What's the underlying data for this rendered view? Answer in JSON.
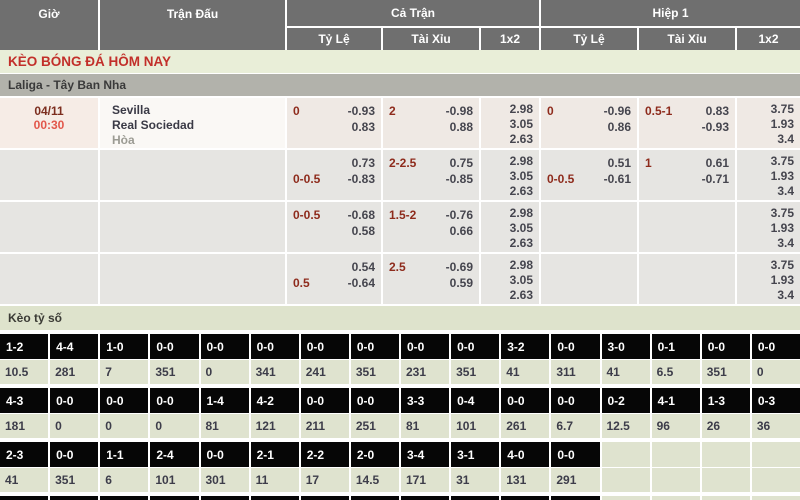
{
  "header": {
    "col_time": "Giờ",
    "col_match": "Trận Đấu",
    "col_full": "Cả Trận",
    "col_half": "Hiệp 1",
    "sub_handicap": "Tỷ Lệ",
    "sub_overunder": "Tài Xỉu",
    "sub_1x2": "1x2"
  },
  "section_title": "KÈO BÓNG ĐÁ HÔM NAY",
  "league": "Laliga - Tây Ban Nha",
  "match": {
    "date": "04/11",
    "time": "00:30",
    "home": "Sevilla",
    "away": "Real Sociedad",
    "draw_label": "Hòa"
  },
  "odds_rows": [
    {
      "ft_hdp": [
        [
          "0",
          "-0.93"
        ],
        [
          "",
          "0.83"
        ]
      ],
      "ft_ou": [
        [
          "2",
          "-0.98"
        ],
        [
          "",
          "0.88"
        ]
      ],
      "ft_1x2": [
        "2.98",
        "3.05",
        "2.63"
      ],
      "h1_hdp": [
        [
          "0",
          "-0.96"
        ],
        [
          "",
          "0.86"
        ]
      ],
      "h1_ou": [
        [
          "0.5-1",
          "0.83"
        ],
        [
          "",
          "-0.93"
        ]
      ],
      "h1_1x2": [
        "3.75",
        "1.93",
        "3.4"
      ]
    },
    {
      "ft_hdp": [
        [
          "",
          "0.73"
        ],
        [
          "0-0.5",
          "-0.83"
        ]
      ],
      "ft_ou": [
        [
          "2-2.5",
          "0.75"
        ],
        [
          "",
          "-0.85"
        ]
      ],
      "ft_1x2": [
        "2.98",
        "3.05",
        "2.63"
      ],
      "h1_hdp": [
        [
          "",
          "0.51"
        ],
        [
          "0-0.5",
          "-0.61"
        ]
      ],
      "h1_ou": [
        [
          "1",
          "0.61"
        ],
        [
          "",
          "-0.71"
        ]
      ],
      "h1_1x2": [
        "3.75",
        "1.93",
        "3.4"
      ]
    },
    {
      "ft_hdp": [
        [
          "0-0.5",
          "-0.68"
        ],
        [
          "",
          "0.58"
        ]
      ],
      "ft_ou": [
        [
          "1.5-2",
          "-0.76"
        ],
        [
          "",
          "0.66"
        ]
      ],
      "ft_1x2": [
        "2.98",
        "3.05",
        "2.63"
      ],
      "h1_hdp": null,
      "h1_ou": null,
      "h1_1x2": [
        "3.75",
        "1.93",
        "3.4"
      ]
    },
    {
      "ft_hdp": [
        [
          "",
          "0.54"
        ],
        [
          "0.5",
          "-0.64"
        ]
      ],
      "ft_ou": [
        [
          "2.5",
          "-0.69"
        ],
        [
          "",
          "0.59"
        ]
      ],
      "ft_1x2": [
        "2.98",
        "3.05",
        "2.63"
      ],
      "h1_hdp": null,
      "h1_ou": null,
      "h1_1x2": [
        "3.75",
        "1.93",
        "3.4"
      ]
    }
  ],
  "score_section": {
    "title": "Kèo tỷ số",
    "rows": [
      {
        "scores": [
          "1-2",
          "4-4",
          "1-0",
          "0-0",
          "0-0",
          "0-0",
          "0-0",
          "0-0",
          "0-0",
          "0-0",
          "3-2",
          "0-0",
          "3-0",
          "0-1",
          "0-0",
          "0-0"
        ],
        "values": [
          "10.5",
          "281",
          "7",
          "351",
          "0",
          "341",
          "241",
          "351",
          "231",
          "351",
          "41",
          "311",
          "41",
          "6.5",
          "351",
          "0"
        ]
      },
      {
        "scores": [
          "4-3",
          "0-0",
          "0-0",
          "0-0",
          "1-4",
          "4-2",
          "0-0",
          "0-0",
          "3-3",
          "0-4",
          "0-0",
          "0-0",
          "0-2",
          "4-1",
          "1-3",
          "0-3"
        ],
        "values": [
          "181",
          "0",
          "0",
          "0",
          "81",
          "121",
          "211",
          "251",
          "81",
          "101",
          "261",
          "6.7",
          "12.5",
          "96",
          "26",
          "36"
        ]
      },
      {
        "scores": [
          "2-3",
          "0-0",
          "1-1",
          "2-4",
          "0-0",
          "2-1",
          "2-2",
          "2-0",
          "3-4",
          "3-1",
          "4-0",
          "0-0",
          "",
          "",
          "",
          ""
        ],
        "values": [
          "41",
          "351",
          "6",
          "101",
          "301",
          "11",
          "17",
          "14.5",
          "171",
          "31",
          "131",
          "291",
          "",
          "",
          "",
          ""
        ]
      }
    ],
    "cutoff_row_cells": 12
  },
  "colors": {
    "header_bg": "#6f6f6f",
    "title_bg": "#e9eed8",
    "title_text": "#c22f2a",
    "league_bg": "#b2b2ab",
    "row_bg": "#e6e5e2",
    "row_highlight_bg": "#efe9e4",
    "handicap_text": "#8e2b1c",
    "odds_text": "#45454e",
    "time_text": "#e2574b",
    "date_text": "#7c2d1e",
    "score_cell_bg": "#060606",
    "score_value_bg": "#dfe3cf"
  }
}
